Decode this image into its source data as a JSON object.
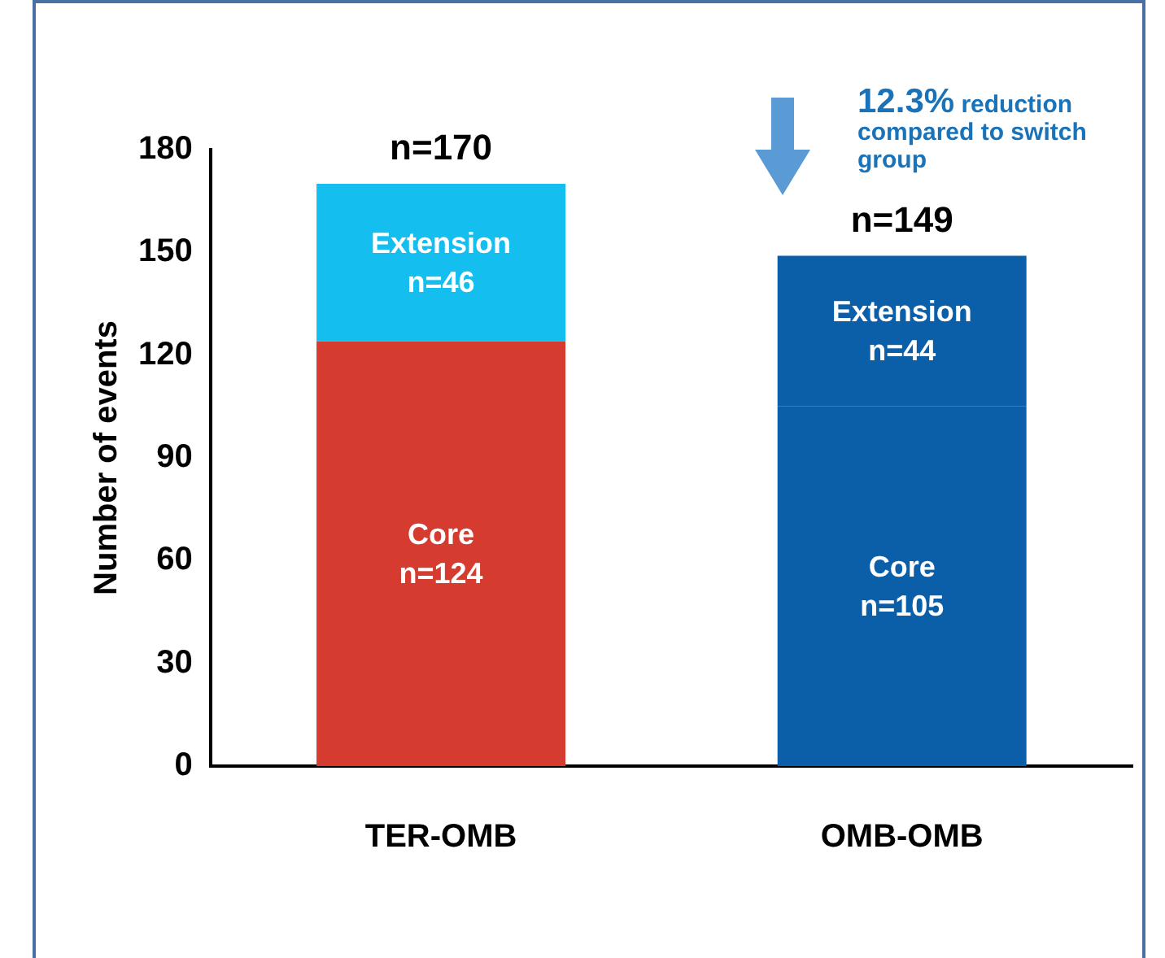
{
  "chart_data": {
    "type": "bar",
    "stacked": true,
    "ylabel": "Number of events",
    "categories": [
      "TER-OMB",
      "OMB-OMB"
    ],
    "series": [
      {
        "name": "Core",
        "colors": [
          "#d63b30",
          "#0a5fa8"
        ],
        "values": [
          124,
          105
        ],
        "value_labels": [
          "n=124",
          "n=105"
        ]
      },
      {
        "name": "Extension",
        "colors": [
          "#14bff0",
          "#0a5fa8"
        ],
        "values": [
          46,
          44
        ],
        "value_labels": [
          "n=46",
          "n=44"
        ]
      }
    ],
    "totals": [
      "n=170",
      "n=149"
    ],
    "ylim": [
      0,
      180
    ],
    "yticks": [
      0,
      30,
      60,
      90,
      120,
      150,
      180
    ],
    "grid": false,
    "legend": false,
    "annotations": [
      "12.3% reduction compared to switch group"
    ]
  }
}
